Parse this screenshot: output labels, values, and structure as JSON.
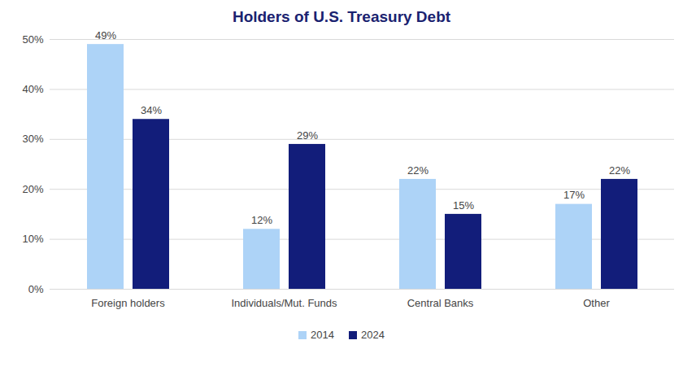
{
  "chart_data": {
    "type": "bar",
    "title": "Holders of U.S. Treasury Debt",
    "categories": [
      "Foreign holders",
      "Individuals/Mut. Funds",
      "Central Banks",
      "Other"
    ],
    "series": [
      {
        "name": "2014",
        "color": "#add3f7",
        "values": [
          49,
          12,
          22,
          17
        ],
        "value_labels": [
          "49%",
          "12%",
          "22%",
          "17%"
        ]
      },
      {
        "name": "2024",
        "color": "#121d7a",
        "values": [
          34,
          29,
          15,
          22
        ],
        "value_labels": [
          "34%",
          "29%",
          "15%",
          "22%"
        ]
      }
    ],
    "ylim": [
      0,
      50
    ],
    "yticks": [
      {
        "value": 0,
        "label": "0%"
      },
      {
        "value": 10,
        "label": "10%"
      },
      {
        "value": 20,
        "label": "20%"
      },
      {
        "value": 30,
        "label": "30%"
      },
      {
        "value": 40,
        "label": "40%"
      },
      {
        "value": 50,
        "label": "50%"
      }
    ],
    "grid": true,
    "legend": "bottom",
    "data_labels": true
  }
}
